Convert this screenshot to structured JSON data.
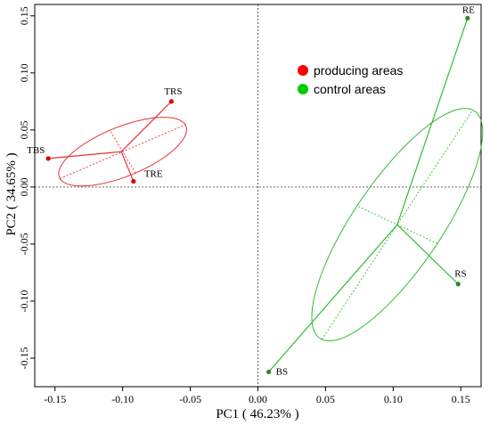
{
  "chart_data": {
    "type": "scatter",
    "xlabel": "PC1 ( 46.23% )",
    "ylabel": "PC2 ( 34.65% )",
    "xlim": [
      -0.165,
      0.165
    ],
    "ylim": [
      -0.175,
      0.16
    ],
    "x_ticks": [
      "-0.15",
      "-0.10",
      "-0.05",
      "0.00",
      "0.05",
      "0.10",
      "0.15"
    ],
    "y_ticks": [
      "-0.15",
      "-0.10",
      "-0.05",
      "0.00",
      "0.05",
      "0.10",
      "0.15"
    ],
    "reference_lines": {
      "x": 0,
      "y": 0
    },
    "legend_position": "top-center",
    "series": [
      {
        "name": "producing areas",
        "color": "#ff0000",
        "line_color": "#e53333",
        "centroid": [
          -0.101,
          0.031
        ],
        "points": [
          {
            "label": "TBS",
            "x": -0.155,
            "y": 0.025
          },
          {
            "label": "TRS",
            "x": -0.064,
            "y": 0.075
          },
          {
            "label": "TRE",
            "x": -0.092,
            "y": 0.005
          }
        ],
        "ellipse": {
          "center": [
            -0.1,
            0.031
          ],
          "semi_major": 0.052,
          "semi_minor": 0.021,
          "angle_deg": 27
        }
      },
      {
        "name": "control areas",
        "color": "#00cc00",
        "line_color": "#33bb33",
        "centroid": [
          0.103,
          -0.033
        ],
        "points": [
          {
            "label": "RE",
            "x": 0.155,
            "y": 0.148
          },
          {
            "label": "RS",
            "x": 0.148,
            "y": -0.085
          },
          {
            "label": "BS",
            "x": 0.008,
            "y": -0.162
          }
        ],
        "ellipse": {
          "center": [
            0.103,
            -0.033
          ],
          "semi_major": 0.115,
          "semi_minor": 0.034,
          "angle_deg": 61
        }
      }
    ]
  }
}
